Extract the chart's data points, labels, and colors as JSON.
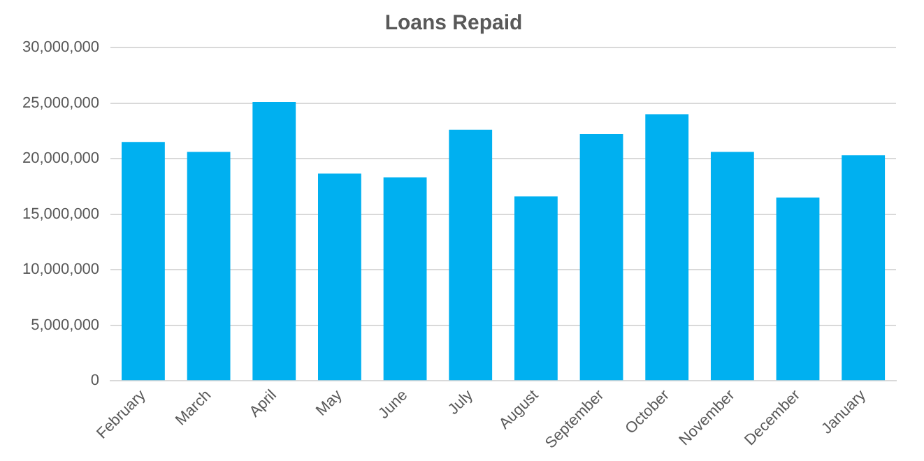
{
  "chart_data": {
    "type": "bar",
    "title": "Loans Repaid",
    "categories": [
      "February",
      "March",
      "April",
      "May",
      "June",
      "July",
      "August",
      "September",
      "October",
      "November",
      "December",
      "January"
    ],
    "values": [
      21500000,
      20600000,
      25100000,
      18650000,
      18300000,
      22600000,
      16600000,
      22200000,
      24000000,
      20600000,
      16500000,
      20300000
    ],
    "color": "#00b0f0",
    "ylim": [
      0,
      30000000
    ],
    "yticks": [
      {
        "value": 0,
        "label": "0"
      },
      {
        "value": 5000000,
        "label": "5,000,000"
      },
      {
        "value": 10000000,
        "label": "10,000,000"
      },
      {
        "value": 15000000,
        "label": "15,000,000"
      },
      {
        "value": 20000000,
        "label": "20,000,000"
      },
      {
        "value": 25000000,
        "label": "25,000,000"
      },
      {
        "value": 30000000,
        "label": "30,000,000"
      }
    ],
    "grid": "y",
    "legend": false
  }
}
